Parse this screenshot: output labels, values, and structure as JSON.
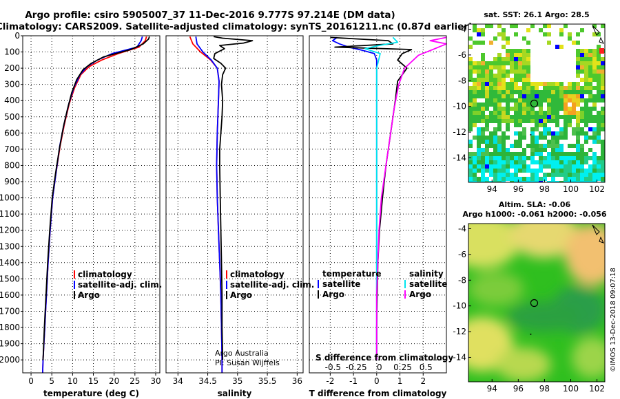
{
  "title": {
    "line1": "Argo profile: csiro 5905007_37 11-Dec-2016 9.777S 97.214E (DM data)",
    "line2": "Climatology: CARS2009. Satellite-adjusted climatology: synTS_20161211.nc (0.87d earlier)"
  },
  "credits": {
    "argo_australia": "Argo Australia",
    "pi": "PI: Susan Wijffels",
    "imos": "©IMOS 13-Dec-2018 09:07:18"
  },
  "colors": {
    "climatology": "#ff0000",
    "satellite": "#0000ff",
    "argo": "#000000",
    "sal_satellite": "#00e5ee",
    "sal_argo": "#ff00ff"
  },
  "legend_temp": [
    "climatology",
    "satellite-adj. clim.",
    "Argo"
  ],
  "legend_sal": [
    "climatology",
    "satellite-adj. clim.",
    "Argo"
  ],
  "legend_diff": {
    "temp_head": "temperature",
    "sal_head": "salinity",
    "temp_items": [
      "satellite",
      "Argo"
    ],
    "sal_items": [
      "satellite",
      "Argo"
    ]
  },
  "diff_s_axis_title": "S difference from climatology",
  "chart_data": [
    {
      "type": "line",
      "name": "temperature-profile",
      "xlabel": "temperature (deg C)",
      "ylabel": "",
      "xlim": [
        -2,
        31
      ],
      "ylim": [
        2080,
        0
      ],
      "x_ticks": [
        0,
        5,
        10,
        15,
        20,
        25,
        30
      ],
      "y_ticks": [
        0,
        100,
        200,
        300,
        400,
        500,
        600,
        700,
        800,
        900,
        1000,
        1100,
        1200,
        1300,
        1400,
        1500,
        1600,
        1700,
        1800,
        1900,
        2000
      ],
      "grid": true,
      "legend": "lower-left",
      "series": [
        {
          "name": "climatology",
          "color": "#ff0000",
          "points": [
            [
              27.8,
              5
            ],
            [
              27.5,
              30
            ],
            [
              26.0,
              70
            ],
            [
              21.0,
              110
            ],
            [
              17.0,
              150
            ],
            [
              14.0,
              190
            ],
            [
              12.0,
              240
            ],
            [
              10.5,
              320
            ],
            [
              9.2,
              420
            ],
            [
              8.0,
              550
            ],
            [
              7.0,
              680
            ],
            [
              6.0,
              850
            ],
            [
              5.2,
              1000
            ],
            [
              4.6,
              1200
            ],
            [
              4.1,
              1400
            ],
            [
              3.7,
              1600
            ],
            [
              3.3,
              1800
            ],
            [
              2.9,
              2000
            ],
            [
              2.8,
              2080
            ]
          ]
        },
        {
          "name": "satellite-adj. clim.",
          "color": "#0000ff",
          "points": [
            [
              26.8,
              5
            ],
            [
              26.5,
              30
            ],
            [
              25.5,
              70
            ],
            [
              19.5,
              110
            ],
            [
              16.0,
              150
            ],
            [
              13.5,
              190
            ],
            [
              11.8,
              240
            ],
            [
              10.3,
              320
            ],
            [
              9.1,
              420
            ],
            [
              7.9,
              550
            ],
            [
              6.9,
              680
            ],
            [
              6.0,
              850
            ],
            [
              5.2,
              1000
            ],
            [
              4.6,
              1200
            ],
            [
              4.1,
              1400
            ],
            [
              3.7,
              1600
            ],
            [
              3.3,
              1800
            ],
            [
              2.9,
              2000
            ],
            [
              2.8,
              2080
            ]
          ]
        },
        {
          "name": "Argo",
          "color": "#000000",
          "points": [
            [
              28.5,
              5
            ],
            [
              28.3,
              20
            ],
            [
              27.0,
              50
            ],
            [
              24.0,
              85
            ],
            [
              17.5,
              130
            ],
            [
              14.5,
              170
            ],
            [
              12.5,
              210
            ],
            [
              11.0,
              270
            ],
            [
              9.8,
              350
            ],
            [
              8.8,
              450
            ],
            [
              7.8,
              560
            ],
            [
              6.8,
              700
            ],
            [
              5.9,
              850
            ],
            [
              5.1,
              1000
            ],
            [
              4.5,
              1200
            ],
            [
              4.0,
              1400
            ],
            [
              3.6,
              1600
            ],
            [
              3.2,
              1800
            ],
            [
              2.9,
              2000
            ]
          ]
        }
      ]
    },
    {
      "type": "line",
      "name": "salinity-profile",
      "xlabel": "salinity",
      "ylabel": "",
      "xlim": [
        33.8,
        36.1
      ],
      "ylim": [
        2080,
        0
      ],
      "x_ticks": [
        34,
        34.5,
        35,
        35.5,
        36
      ],
      "x_tick_labels": [
        "34",
        "34.5",
        "35",
        "35.5",
        "36"
      ],
      "grid": true,
      "legend": "lower-left",
      "series": [
        {
          "name": "climatology",
          "color": "#ff0000",
          "points": [
            [
              34.2,
              5
            ],
            [
              34.25,
              50
            ],
            [
              34.38,
              100
            ],
            [
              34.55,
              150
            ],
            [
              34.66,
              200
            ],
            [
              34.69,
              280
            ],
            [
              34.68,
              400
            ],
            [
              34.66,
              600
            ],
            [
              34.65,
              800
            ],
            [
              34.66,
              1000
            ],
            [
              34.68,
              1200
            ],
            [
              34.7,
              1400
            ],
            [
              34.72,
              1600
            ],
            [
              34.73,
              1800
            ],
            [
              34.74,
              2000
            ],
            [
              34.74,
              2080
            ]
          ]
        },
        {
          "name": "satellite-adj. clim.",
          "color": "#0000ff",
          "points": [
            [
              34.3,
              5
            ],
            [
              34.32,
              50
            ],
            [
              34.42,
              100
            ],
            [
              34.56,
              150
            ],
            [
              34.66,
              200
            ],
            [
              34.69,
              280
            ],
            [
              34.68,
              400
            ],
            [
              34.66,
              600
            ],
            [
              34.65,
              800
            ],
            [
              34.66,
              1000
            ],
            [
              34.68,
              1200
            ],
            [
              34.7,
              1400
            ],
            [
              34.72,
              1600
            ],
            [
              34.73,
              1800
            ],
            [
              34.74,
              2000
            ],
            [
              34.74,
              2080
            ]
          ]
        },
        {
          "name": "Argo",
          "color": "#000000",
          "points": [
            [
              34.6,
              5
            ],
            [
              34.75,
              15
            ],
            [
              35.25,
              30
            ],
            [
              35.1,
              45
            ],
            [
              34.7,
              60
            ],
            [
              34.78,
              80
            ],
            [
              34.62,
              110
            ],
            [
              34.6,
              140
            ],
            [
              34.72,
              170
            ],
            [
              34.8,
              200
            ],
            [
              34.75,
              240
            ],
            [
              34.73,
              300
            ],
            [
              34.75,
              400
            ],
            [
              34.74,
              500
            ],
            [
              34.72,
              600
            ],
            [
              34.7,
              700
            ],
            [
              34.7,
              800
            ],
            [
              34.71,
              1000
            ],
            [
              34.72,
              1200
            ],
            [
              34.73,
              1400
            ],
            [
              34.74,
              1600
            ],
            [
              34.74,
              1800
            ],
            [
              34.75,
              2000
            ]
          ]
        }
      ]
    },
    {
      "type": "line",
      "name": "difference-profile",
      "xlabel": "T difference from climatology",
      "ylabel": "",
      "xlim": [
        -2.9,
        3.0
      ],
      "ylim": [
        2080,
        0
      ],
      "x_ticks": [
        -2,
        -1,
        0,
        1,
        2
      ],
      "x_tick_labels": [
        "-2",
        "-1",
        "0",
        "1",
        "2"
      ],
      "s_axis_ticks": [
        "-0.5",
        "-0.25",
        "0",
        "0.25",
        "0.5"
      ],
      "grid": true,
      "legend": "lower-center",
      "series": [
        {
          "name": "T satellite",
          "color": "#0000ff",
          "points": [
            [
              -1.7,
              10
            ],
            [
              -1.9,
              30
            ],
            [
              -1.6,
              50
            ],
            [
              -1.2,
              70
            ],
            [
              -0.6,
              90
            ],
            [
              -0.1,
              110
            ],
            [
              0,
              150
            ],
            [
              0,
              300
            ],
            [
              0,
              600
            ],
            [
              0,
              1000
            ],
            [
              0,
              1500
            ],
            [
              0,
              2000
            ]
          ]
        },
        {
          "name": "T Argo",
          "color": "#000000",
          "points": [
            [
              -2.0,
              10
            ],
            [
              0.5,
              30
            ],
            [
              0.7,
              50
            ],
            [
              -1.8,
              70
            ],
            [
              1.5,
              85
            ],
            [
              1.1,
              110
            ],
            [
              0.9,
              150
            ],
            [
              1.3,
              200
            ],
            [
              0.9,
              280
            ],
            [
              0.8,
              400
            ],
            [
              0.6,
              600
            ],
            [
              0.4,
              800
            ],
            [
              0.25,
              1000
            ],
            [
              0.12,
              1200
            ],
            [
              0.05,
              1400
            ],
            [
              0.02,
              1600
            ],
            [
              0,
              1800
            ],
            [
              0,
              2000
            ]
          ]
        },
        {
          "name": "S satellite",
          "color": "#00e5ee",
          "points": [
            [
              0.7,
              10
            ],
            [
              0.9,
              40
            ],
            [
              0.1,
              60
            ],
            [
              -0.5,
              80
            ],
            [
              0.15,
              110
            ],
            [
              0,
              200
            ],
            [
              0,
              400
            ],
            [
              0,
              800
            ],
            [
              0,
              1200
            ],
            [
              0,
              1600
            ],
            [
              0,
              2000
            ]
          ]
        },
        {
          "name": "S Argo",
          "color": "#ff00ff",
          "points": [
            [
              3.0,
              10
            ],
            [
              2.3,
              30
            ],
            [
              3.0,
              50
            ],
            [
              2.5,
              80
            ],
            [
              1.8,
              120
            ],
            [
              1.2,
              200
            ],
            [
              0.95,
              300
            ],
            [
              0.75,
              450
            ],
            [
              0.6,
              600
            ],
            [
              0.4,
              800
            ],
            [
              0.2,
              1000
            ],
            [
              0.1,
              1200
            ],
            [
              0.05,
              1400
            ],
            [
              0,
              1600
            ],
            [
              0,
              1800
            ],
            [
              0,
              2000
            ]
          ]
        }
      ]
    }
  ],
  "maps": [
    {
      "name": "sst-map",
      "title": "sat. SST: 26.1  Argo: 28.5",
      "x_ticks": [
        "94",
        "96",
        "98",
        "100",
        "102"
      ],
      "y_ticks": [
        "-4",
        "-6",
        "-8",
        "-10",
        "-12",
        "-14"
      ]
    },
    {
      "name": "sla-map",
      "title_line1": "Altim. SLA: -0.06",
      "title_line2": "Argo h1000: -0.061 h2000: -0.056",
      "x_ticks": [
        "94",
        "96",
        "98",
        "100",
        "102"
      ],
      "y_ticks": [
        "-4",
        "-6",
        "-8",
        "-10",
        "-12",
        "-14"
      ]
    }
  ]
}
